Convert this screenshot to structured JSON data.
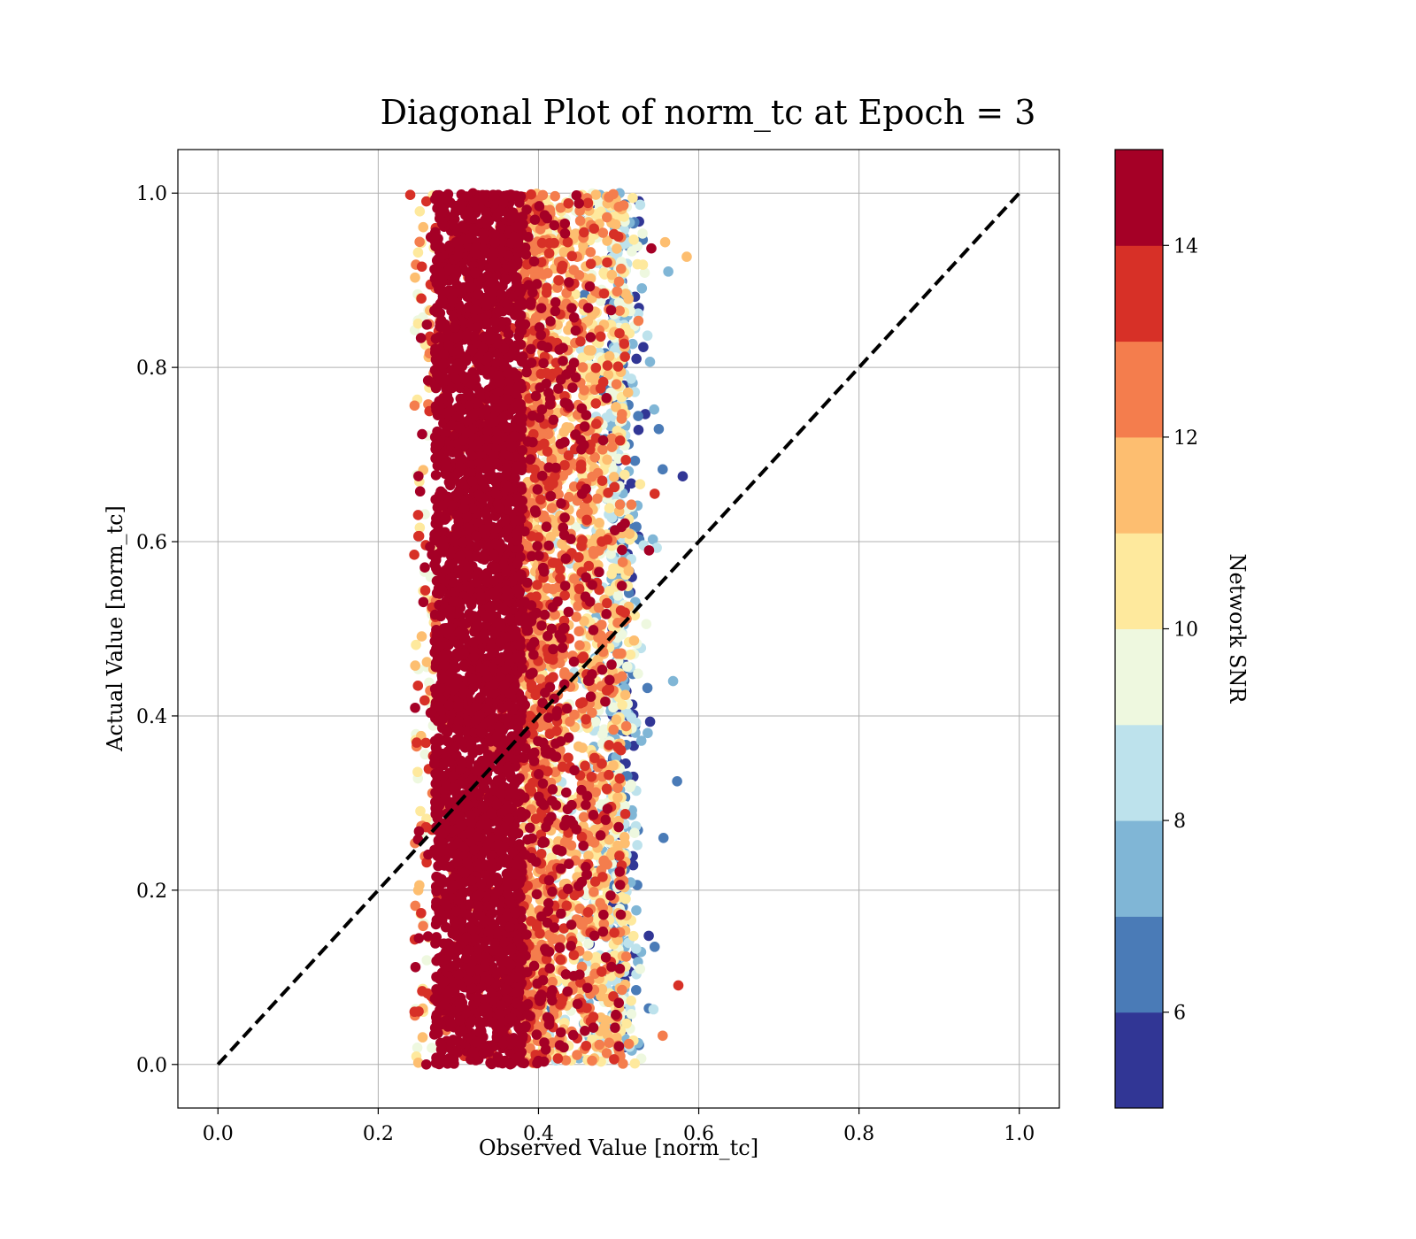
{
  "chart_data": {
    "type": "scatter",
    "title": "Diagonal Plot of norm_tc at Epoch = 3",
    "xlabel": "Observed Value [norm_tc]",
    "ylabel": "Actual Value [norm_tc]",
    "xlim": [
      -0.05,
      1.05
    ],
    "ylim": [
      -0.05,
      1.05
    ],
    "xticks": [
      0.0,
      0.2,
      0.4,
      0.6,
      0.8,
      1.0
    ],
    "yticks": [
      0.0,
      0.2,
      0.4,
      0.6,
      0.8,
      1.0
    ],
    "xtick_labels": [
      "0.0",
      "0.2",
      "0.4",
      "0.6",
      "0.8",
      "1.0"
    ],
    "ytick_labels": [
      "0.0",
      "0.2",
      "0.4",
      "0.6",
      "0.8",
      "1.0"
    ],
    "grid": true,
    "diagonal_reference": {
      "x": [
        0.0,
        1.0
      ],
      "y": [
        0.0,
        1.0
      ],
      "style": "dashed",
      "color": "#000000"
    },
    "scatter_distribution": {
      "x_range": [
        0.24,
        0.59
      ],
      "y_range": [
        0.0,
        1.0
      ],
      "dense_core_x": [
        0.27,
        0.38
      ],
      "high_snr_x": [
        0.27,
        0.44
      ],
      "low_snr_x": [
        0.49,
        0.58
      ]
    },
    "notable_points": [
      {
        "x": 0.58,
        "y": 0.675,
        "snr": 5.2
      },
      {
        "x": 0.573,
        "y": 0.325,
        "snr": 6.3
      },
      {
        "x": 0.585,
        "y": 0.927,
        "snr": 11.6
      },
      {
        "x": 0.568,
        "y": 0.44,
        "snr": 7.8
      },
      {
        "x": 0.556,
        "y": 0.26,
        "snr": 6.7
      },
      {
        "x": 0.24,
        "y": 0.998,
        "snr": 13.5
      },
      {
        "x": 0.26,
        "y": 0.0,
        "snr": 14.5
      },
      {
        "x": 0.562,
        "y": 0.91,
        "snr": 7.6
      },
      {
        "x": 0.555,
        "y": 0.033,
        "snr": 12.5
      },
      {
        "x": 0.545,
        "y": 0.135,
        "snr": 6.5
      },
      {
        "x": 0.555,
        "y": 0.683,
        "snr": 6.6
      },
      {
        "x": 0.545,
        "y": 0.655,
        "snr": 13.6
      },
      {
        "x": 0.538,
        "y": 0.59,
        "snr": 14.5
      },
      {
        "x": 0.25,
        "y": 0.2,
        "snr": 11.6
      },
      {
        "x": 0.245,
        "y": 0.585,
        "snr": 13.6
      }
    ],
    "colorbar": {
      "label": "Network SNR",
      "min": 5,
      "max": 15,
      "ticks": [
        6,
        8,
        10,
        12,
        14
      ],
      "tick_labels": [
        "6",
        "8",
        "10",
        "12",
        "14"
      ],
      "levels": [
        {
          "from": 5,
          "to": 6,
          "color": "#313695"
        },
        {
          "from": 6,
          "to": 7,
          "color": "#4a7bb7"
        },
        {
          "from": 7,
          "to": 8,
          "color": "#80b6d6"
        },
        {
          "from": 8,
          "to": 9,
          "color": "#bde2ec"
        },
        {
          "from": 9,
          "to": 10,
          "color": "#eef8df"
        },
        {
          "from": 10,
          "to": 11,
          "color": "#fee99d"
        },
        {
          "from": 11,
          "to": 12,
          "color": "#fdbe70"
        },
        {
          "from": 12,
          "to": 13,
          "color": "#f47d4d"
        },
        {
          "from": 13,
          "to": 14,
          "color": "#d73027"
        },
        {
          "from": 14,
          "to": 15,
          "color": "#a50026"
        }
      ]
    }
  }
}
